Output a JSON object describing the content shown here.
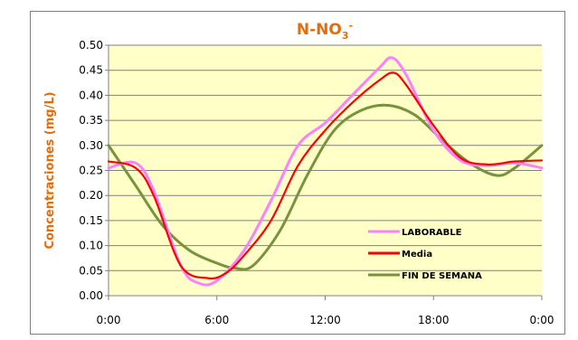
{
  "chart_data": {
    "type": "line",
    "title": "N-NO",
    "title_sub": "3",
    "title_sup": "-",
    "ylabel": "Concentraciones (mg/L)",
    "xlabel": "",
    "x_ticks": [
      "0:00",
      "6:00",
      "12:00",
      "18:00",
      "0:00"
    ],
    "ylim": [
      0,
      0.5
    ],
    "y_ticks": [
      "0.00",
      "0.05",
      "0.10",
      "0.15",
      "0.20",
      "0.25",
      "0.30",
      "0.35",
      "0.40",
      "0.45",
      "0.50"
    ],
    "grid": true,
    "plot_background": "#ffffc8",
    "legend_position": "bottom-right",
    "series": [
      {
        "name": "LABORABLE",
        "color": "#ff80ff",
        "x": [
          0,
          1.5,
          2.5,
          4,
          5,
          6,
          7.5,
          9,
          10.5,
          12,
          13.5,
          15,
          15.7,
          16.5,
          18,
          19.5,
          21,
          22.5,
          24
        ],
        "y": [
          0.255,
          0.265,
          0.21,
          0.06,
          0.025,
          0.03,
          0.09,
          0.19,
          0.3,
          0.345,
          0.4,
          0.455,
          0.475,
          0.44,
          0.33,
          0.27,
          0.26,
          0.265,
          0.255
        ]
      },
      {
        "name": "Media",
        "color": "#ff0000",
        "x": [
          0,
          1.5,
          2.5,
          4,
          5.5,
          6.5,
          7.5,
          9,
          10.5,
          12,
          13.5,
          15,
          15.8,
          16.5,
          18,
          19.5,
          21,
          22.5,
          24
        ],
        "y": [
          0.268,
          0.255,
          0.2,
          0.06,
          0.035,
          0.045,
          0.08,
          0.15,
          0.26,
          0.33,
          0.385,
          0.43,
          0.445,
          0.42,
          0.34,
          0.275,
          0.262,
          0.268,
          0.27
        ]
      },
      {
        "name": "FIN DE SEMANA",
        "color": "#77933c",
        "x": [
          0,
          1.5,
          3,
          4.5,
          6,
          7,
          8,
          9.5,
          11,
          12.5,
          14,
          15.5,
          17,
          18.5,
          20,
          21.5,
          22.5,
          24
        ],
        "y": [
          0.3,
          0.22,
          0.14,
          0.09,
          0.065,
          0.055,
          0.06,
          0.13,
          0.24,
          0.33,
          0.37,
          0.38,
          0.36,
          0.31,
          0.265,
          0.24,
          0.255,
          0.3
        ]
      }
    ]
  }
}
